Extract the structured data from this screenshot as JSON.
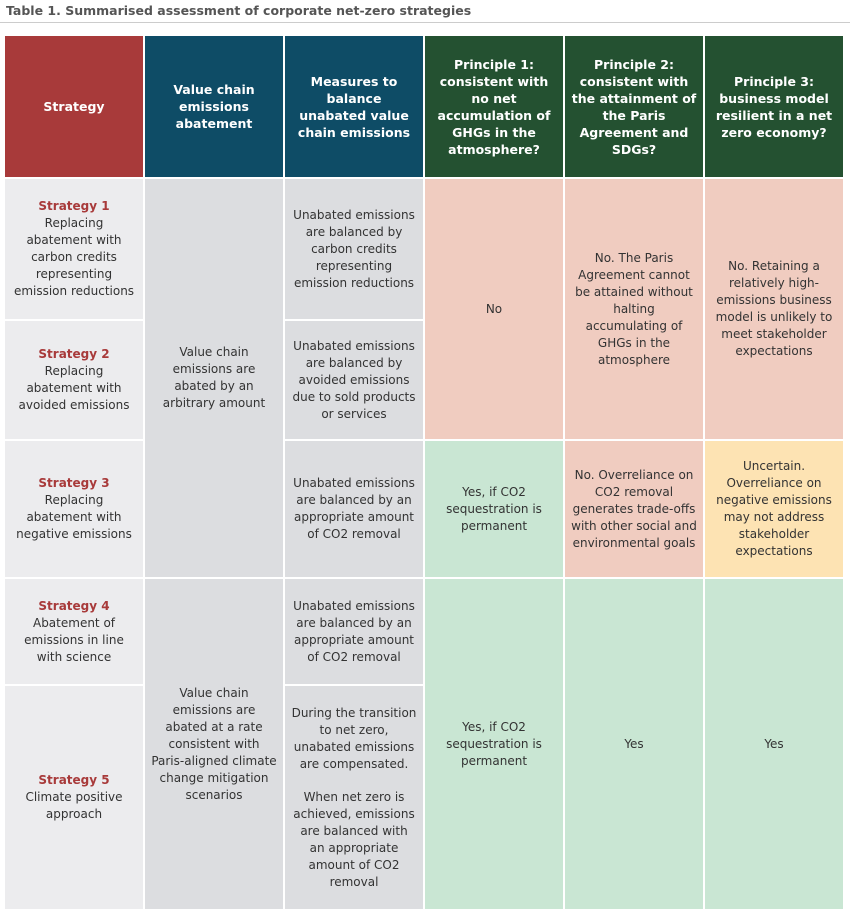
{
  "title": "Table 1. Summarised assessment of corporate net-zero strategies",
  "table": {
    "headers": [
      "Strategy",
      "Value chain emissions abatement",
      "Measures to balance unabated value chain emissions",
      "Principle 1: consistent with no net accumulation of GHGs in the atmosphere?",
      "Principle 2: consistent with the attainment of the Paris Agreement and SDGs?",
      "Principle 3: business model resilient in a net zero economy?"
    ],
    "strategies": [
      {
        "name": "Strategy 1",
        "description": "Replacing abatement with carbon credits representing emission reductions"
      },
      {
        "name": "Strategy 2",
        "description": "Replacing abatement with avoided emissions"
      },
      {
        "name": "Strategy 3",
        "description": "Replacing abatement with negative emissions"
      },
      {
        "name": "Strategy 4",
        "description": "Abatement of emissions in line with science"
      },
      {
        "name": "Strategy 5",
        "description": "Climate positive approach"
      }
    ],
    "value_chain_abatement": [
      "Value chain emissions are abated by an arbitrary amount",
      "Value chain emissions are abated at a rate consistent with Paris-aligned climate change mitigation scenarios"
    ],
    "measures": [
      [
        "Unabated emissions are balanced by carbon credits representing emission reductions"
      ],
      [
        "Unabated emissions are balanced by avoided emissions due to sold products or services"
      ],
      [
        "Unabated emissions are balanced by an appropriate amount of CO2 removal"
      ],
      [
        "Unabated emissions are balanced by an appropriate amount of CO2 removal"
      ],
      [
        "During the transition to net zero, unabated emissions are compensated.",
        "When net zero is achieved, emissions are balanced with an appropriate amount of CO2 removal"
      ]
    ],
    "principle_1": [
      "No",
      "Yes, if CO2 sequestration is permanent",
      "Yes, if CO2 sequestration is permanent"
    ],
    "principle_2": [
      "No. The Paris Agreement cannot be attained without halting accumulating of GHGs in the atmosphere",
      "No. Overreliance on CO2 removal generates trade-offs with other social and environmental goals",
      "Yes"
    ],
    "principle_3": [
      "No. Retaining a relatively high-emissions business model is unlikely to meet stakeholder expectations",
      "Uncertain. Overreliance on negative emissions may not address stakeholder expectations",
      "Yes"
    ]
  }
}
